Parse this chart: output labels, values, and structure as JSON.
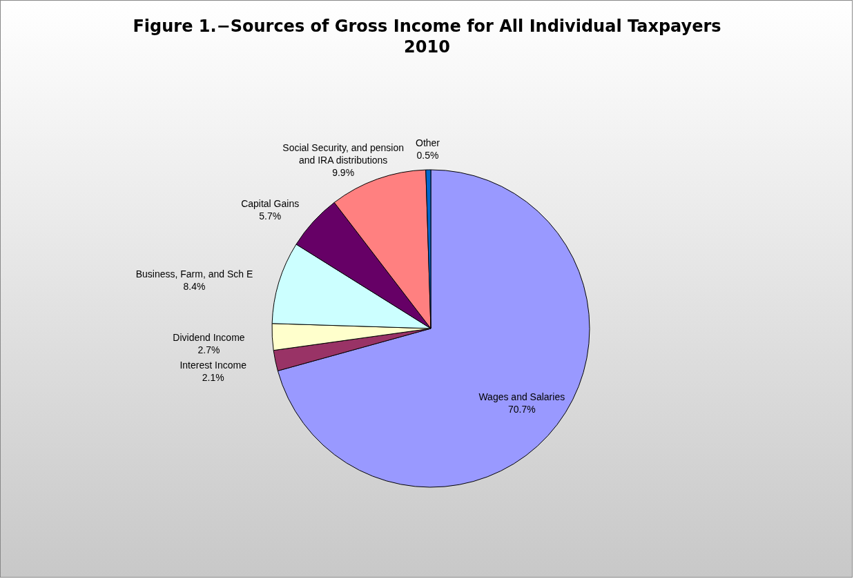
{
  "chart_data": {
    "type": "pie",
    "title": "Figure 1.−Sources of Gross Income for All Individual Taxpayers",
    "subtitle": "2010",
    "categories": [
      "Wages and Salaries",
      "Interest Income",
      "Dividend Income",
      "Business, Farm, and Sch E",
      "Capital Gains",
      "Social Security, and pension and IRA distributions",
      "Other"
    ],
    "values": [
      70.7,
      2.1,
      2.7,
      8.4,
      5.7,
      9.9,
      0.5
    ],
    "colors": [
      "#9999ff",
      "#993366",
      "#ffffcc",
      "#ccffff",
      "#660066",
      "#ff8080",
      "#0066cc"
    ],
    "value_labels": [
      "70.7%",
      "2.1%",
      "2.7%",
      "8.4%",
      "5.7%",
      "9.9%",
      "0.5%"
    ],
    "legend": false
  }
}
